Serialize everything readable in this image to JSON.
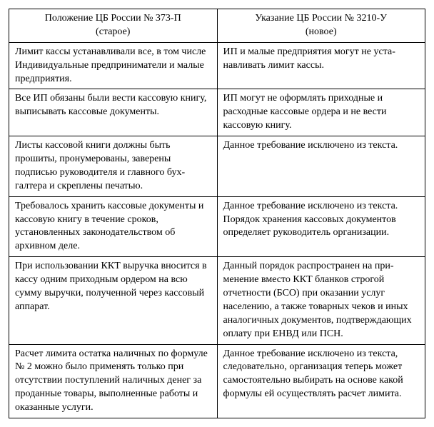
{
  "table": {
    "columns": [
      {
        "title_line1": "Положение ЦБ России № 373-П",
        "title_line2": "(старое)"
      },
      {
        "title_line1": "Указание ЦБ России № 3210-У",
        "title_line2": "(новое)"
      }
    ],
    "rows": [
      {
        "left": "Лимит кассы устанавливали все, в том числе Индивидуальные предпринимате­ли и малые предприятия.",
        "right": "ИП и малые предприятия могут не уста­навливать лимит кассы."
      },
      {
        "left": "Все ИП обязаны были вести кассовую книгу, выписывать кассовые документы.",
        "right": "ИП могут не оформлять приходные и расходные кассовые ордера и не вести кассовую книгу."
      },
      {
        "left": "Листы кассовой книги должны быть прошиты, пронумерованы, заверены подписью руководителя и главного бух­галтера и скреплены печатью.",
        "right": "Данное требование исключено из текста."
      },
      {
        "left": "Требовалось хранить кассовые докумен­ты и кассовую книгу в течение сроков, установленных законодательством об архивном деле.",
        "right": "Данное требование исключено из текста. Порядок хранения кассовых документов определяет руководитель организации."
      },
      {
        "left": "При использовании ККТ выручка вно­сится в кассу одним приходным ордером на всю сумму выручки, полученной че­рез кассовый аппарат.",
        "right": "Данный порядок распространен на при­менение вместо ККТ бланков строгой отчетности (БСО) при оказании услуг населению, а также товарных чеков и иных аналогичных документов, под­тверждающих оплату при ЕНВД или ПСН."
      },
      {
        "left": "Расчет лимита остатка наличных по формуле № 2 можно было применять только при отсутствии поступлений наличных денег за проданные товары, выполненные работы и оказанные услу­ги.",
        "right": "Данное требование исключено из текста, следовательно, организация теперь мо­жет самостоятельно выбирать на основе какой формулы ей осуществлять расчет лимита."
      }
    ],
    "styling": {
      "font_family": "Times New Roman",
      "font_size_pt": 11,
      "border_color": "#000000",
      "background_color": "#ffffff",
      "text_color": "#000000",
      "col_count": 2,
      "col_width_percent": [
        50,
        50
      ]
    }
  }
}
